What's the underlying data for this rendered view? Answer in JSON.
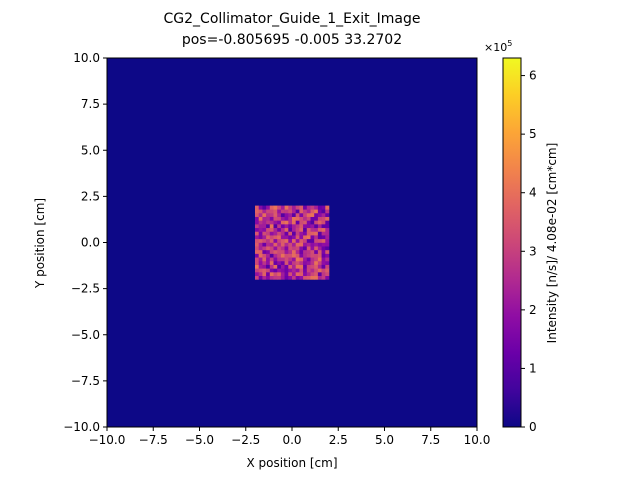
{
  "chart_data": {
    "type": "heatmap",
    "title": "CG2_Collimator_Guide_1_Exit_Image",
    "subtitle": "pos=-0.805695 -0.005 33.2702",
    "xlabel": "X position [cm]",
    "ylabel": "Y position [cm]",
    "xlim": [
      -10,
      10
    ],
    "ylim": [
      -10,
      10
    ],
    "xticks": [
      "−10.0",
      "−7.5",
      "−5.0",
      "−2.5",
      "0.0",
      "2.5",
      "5.0",
      "7.5",
      "10.0"
    ],
    "yticks": [
      "−10.0",
      "−7.5",
      "−5.0",
      "−2.5",
      "0.0",
      "2.5",
      "5.0",
      "7.5",
      "10.0"
    ],
    "colormap": "plasma",
    "colorbar": {
      "label": "Intensity [n/s]/ 4.08e-02 [cm*cm]",
      "multiplier": "×10",
      "exponent": "5",
      "min": 0,
      "max": 630000,
      "ticks": [
        "0",
        "1",
        "2",
        "3",
        "4",
        "5",
        "6"
      ]
    },
    "background_intensity": 0,
    "illuminated_region": {
      "x": [
        -2.0,
        2.0
      ],
      "y": [
        -2.0,
        2.0
      ]
    },
    "pixel_size_cm": 0.2,
    "typical_intensity": 250000,
    "grid": false
  }
}
